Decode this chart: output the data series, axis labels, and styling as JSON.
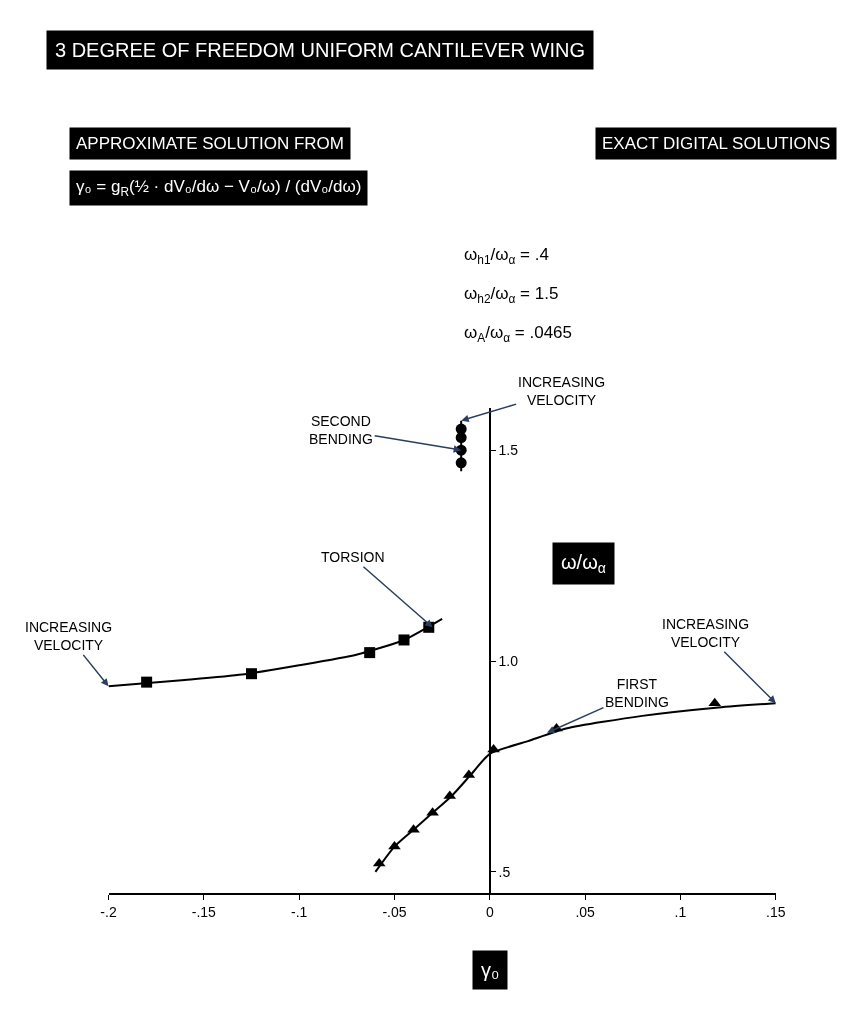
{
  "chart_data": {
    "type": "scatter",
    "title": "3 DEGREE OF FREEDOM UNIFORM CANTILEVER WING",
    "xlabel": "γ₀",
    "ylabel": "ω/ω$_{α}$",
    "xlim": [
      -0.2,
      0.15
    ],
    "xticks": [
      {
        "value": -0.2,
        "label": "-.2"
      },
      {
        "value": -0.15,
        "label": "-.15"
      },
      {
        "value": -0.1,
        "label": "-.1"
      },
      {
        "value": -0.05,
        "label": "-.05"
      },
      0,
      {
        "value": 0.05,
        "label": ".05"
      },
      {
        "value": 0.1,
        "label": ".1"
      },
      {
        "value": 0.15,
        "label": ".15"
      }
    ],
    "ylim": [
      0.45,
      1.6
    ],
    "yticks": [
      {
        "value": 0.5,
        "label": ".5"
      },
      {
        "value": 1.0,
        "label": "1.0"
      },
      1.5
    ],
    "series": [
      {
        "type": "line",
        "marker": "none",
        "color": "#000000",
        "x": [
          -0.015,
          -0.015
        ],
        "values": [
          1.45,
          1.57
        ]
      },
      {
        "type": "line",
        "marker": "none",
        "color": "#000000",
        "x": [
          -0.025,
          -0.045,
          -0.07,
          -0.1,
          -0.13,
          -0.16,
          -0.2
        ],
        "values": [
          1.1,
          1.05,
          1.015,
          0.99,
          0.968,
          0.955,
          0.94
        ]
      },
      {
        "type": "line",
        "marker": "none",
        "color": "#000000",
        "x": [
          -0.06,
          -0.05,
          -0.04,
          -0.03,
          -0.02,
          -0.01,
          0,
          0.02,
          0.04,
          0.08,
          0.12,
          0.15
        ],
        "values": [
          0.5,
          0.56,
          0.6,
          0.64,
          0.68,
          0.73,
          0.78,
          0.81,
          0.84,
          0.87,
          0.89,
          0.9
        ]
      },
      {
        "type": "scatter",
        "marker": "circle",
        "color": "#000000",
        "x": [
          -0.015,
          -0.015,
          -0.015,
          -0.015
        ],
        "values": [
          1.47,
          1.5,
          1.53,
          1.55
        ]
      },
      {
        "type": "scatter",
        "marker": "square",
        "color": "#000000",
        "x": [
          -0.032,
          -0.045,
          -0.063,
          -0.125,
          -0.18
        ],
        "values": [
          1.08,
          1.05,
          1.02,
          0.97,
          0.95
        ]
      },
      {
        "type": "scatter",
        "marker": "triangle",
        "color": "#000000",
        "x": [
          0.118,
          0.035,
          0.002,
          -0.011,
          -0.021,
          -0.03,
          -0.04,
          -0.05,
          -0.058
        ],
        "values": [
          0.9,
          0.84,
          0.79,
          0.73,
          0.68,
          0.64,
          0.6,
          0.56,
          0.52
        ]
      }
    ],
    "annotations": [
      "APPROXIMATE SOLUTION FROM",
      "γ₀ = g$_{R}$(½ · dV₀/dω − V₀/ω) / (dV₀/dω)",
      "EXACT DIGITAL SOLUTIONS",
      "ω$_{h1}$/ω$_{α}$ = .4",
      "ω$_{h2}$/ω$_{α}$ = 1.5",
      "ω$_{A}$/ω$_{α}$ = .0465",
      {
        "text": "SECOND BENDING",
        "x": -0.015,
        "y": 1.5
      },
      {
        "text": "TORSION",
        "x": -0.03,
        "y": 1.08
      },
      {
        "text": "FIRST BENDING",
        "x": 0.03,
        "y": 0.83
      },
      {
        "text": "INCREASING VELOCITY",
        "x": -0.2,
        "y": 0.94
      },
      {
        "text": "INCREASING VELOCITY",
        "x": 0.15,
        "y": 0.9
      },
      {
        "text": "INCREASING VELOCITY",
        "x": -0.015,
        "y": 1.57
      }
    ]
  }
}
